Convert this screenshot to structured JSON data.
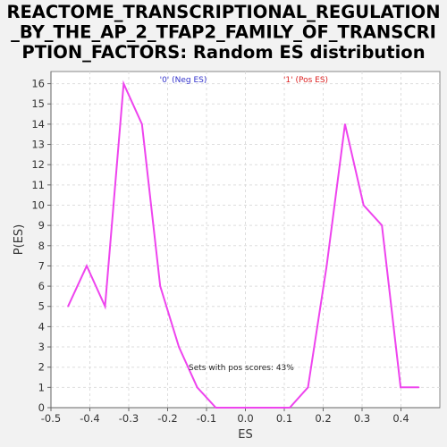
{
  "chart_data": {
    "type": "line",
    "title_lines": [
      "REACTOME_TRANSCRIPTIONAL_REGULATION",
      "_BY_THE_AP_2_TFAP2_FAMILY_OF_TRANSCRI",
      "PTION_FACTORS: Random ES distribution"
    ],
    "xlabel": "ES",
    "ylabel": "P(ES)",
    "xlim": [
      -0.5,
      0.5
    ],
    "ylim": [
      0,
      16.6
    ],
    "x_ticks": [
      -0.5,
      -0.4,
      -0.3,
      -0.2,
      -0.1,
      0.0,
      0.1,
      0.2,
      0.3,
      0.4
    ],
    "x_tick_labels": [
      "-0.5",
      "-0.4",
      "-0.3",
      "-0.2",
      "-0.1",
      "0.0",
      "0.1",
      "0.2",
      "0.3",
      "0.4"
    ],
    "y_ticks": [
      0,
      1,
      2,
      3,
      4,
      5,
      6,
      7,
      8,
      9,
      10,
      11,
      12,
      13,
      14,
      15,
      16
    ],
    "y_tick_labels": [
      "0",
      "1",
      "2",
      "3",
      "4",
      "5",
      "6",
      "7",
      "8",
      "9",
      "10",
      "11",
      "12",
      "13",
      "14",
      "15",
      "16"
    ],
    "grid": true,
    "legend": [
      {
        "label": "'0' (Neg ES)",
        "color": "#3333cc"
      },
      {
        "label": "'1' (Pos ES)",
        "color": "#dd2222"
      }
    ],
    "annotation": "Sets with pos scores: 43%",
    "series": [
      {
        "name": "P(ES)",
        "color": "#ee44ee",
        "x": [
          -0.456,
          -0.408,
          -0.361,
          -0.313,
          -0.266,
          -0.219,
          -0.171,
          -0.124,
          -0.076,
          -0.029,
          0.019,
          0.066,
          0.114,
          0.161,
          0.209,
          0.256,
          0.304,
          0.351,
          0.399,
          0.446
        ],
        "y": [
          5,
          7,
          5,
          16,
          14,
          6,
          3,
          1,
          0,
          0,
          0,
          0,
          0,
          1,
          7,
          14,
          10,
          9,
          1,
          1
        ]
      }
    ]
  }
}
